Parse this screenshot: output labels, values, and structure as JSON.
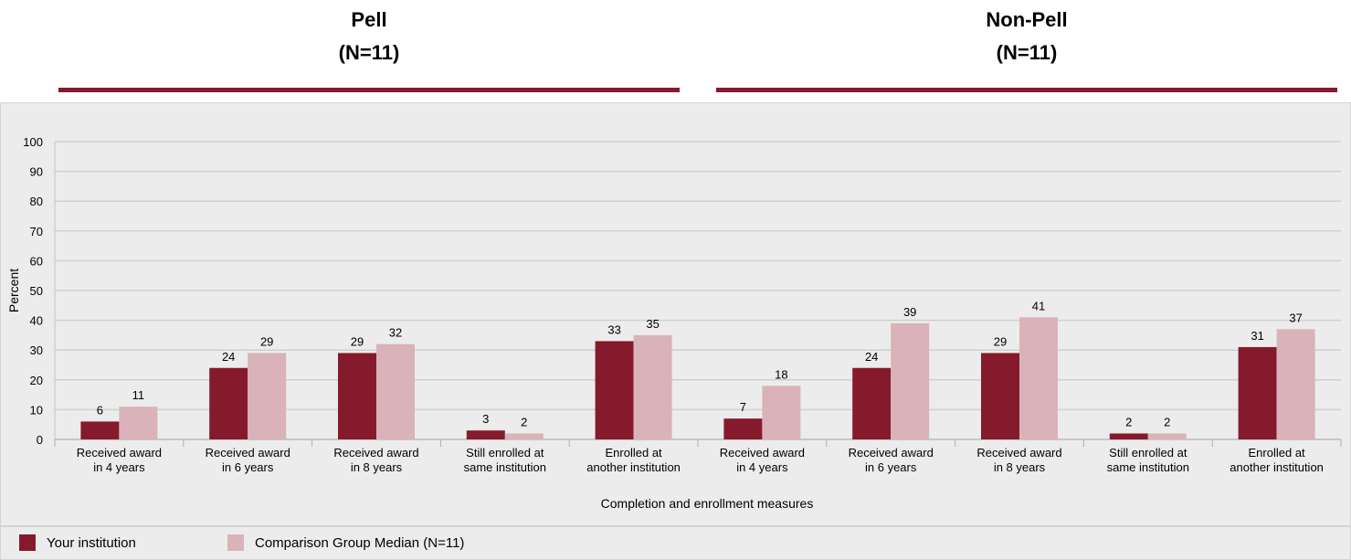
{
  "header": {
    "groups": [
      {
        "label": "Pell",
        "n": "(N=11)"
      },
      {
        "label": "Non-Pell",
        "n": "(N=11)"
      }
    ]
  },
  "colors": {
    "your_institution": "#861a2d",
    "comparison": "#d9b3b9",
    "accent_rule": "#861a2d"
  },
  "legend": {
    "items": [
      {
        "label": "Your institution"
      },
      {
        "label": "Comparison Group Median (N=11)"
      }
    ]
  },
  "chart_data": {
    "type": "bar",
    "title": "",
    "xlabel": "Completion and enrollment measures",
    "ylabel": "Percent",
    "ylim": [
      0,
      100
    ],
    "yticks": [
      0,
      10,
      20,
      30,
      40,
      50,
      60,
      70,
      80,
      90,
      100
    ],
    "grid": true,
    "categories": [
      [
        "Received award",
        "in 4 years"
      ],
      [
        "Received award",
        "in 6 years"
      ],
      [
        "Received award",
        "in 8 years"
      ],
      [
        "Still enrolled at",
        "same institution"
      ],
      [
        "Enrolled at",
        "another institution"
      ],
      [
        "Received award",
        "in 4 years"
      ],
      [
        "Received award",
        "in 6 years"
      ],
      [
        "Received award",
        "in 8 years"
      ],
      [
        "Still enrolled at",
        "same institution"
      ],
      [
        "Enrolled at",
        "another institution"
      ]
    ],
    "series": [
      {
        "name": "Your institution",
        "values": [
          6,
          24,
          29,
          3,
          33,
          7,
          24,
          29,
          2,
          31
        ]
      },
      {
        "name": "Comparison Group Median (N=11)",
        "values": [
          11,
          29,
          32,
          2,
          35,
          18,
          39,
          41,
          2,
          37
        ]
      }
    ],
    "legend_position": "bottom-left"
  }
}
